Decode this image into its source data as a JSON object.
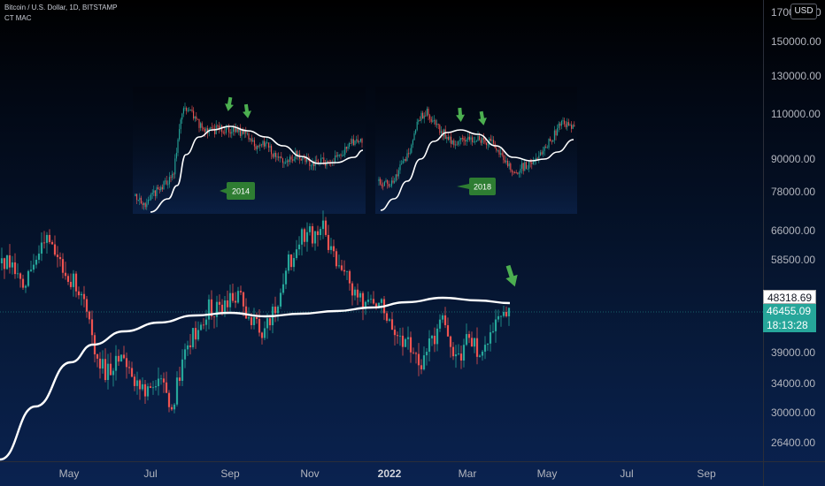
{
  "header": {
    "title": "Bitcoin / U.S. Dollar, 1D, BITSTAMP",
    "indicator": "CT MAC"
  },
  "price_axis": {
    "currency": "USD",
    "ticks": [
      "170000.00",
      "150000.00",
      "130000.00",
      "110000.00",
      "90000.00",
      "78000.00",
      "66000.00",
      "58500.00",
      "39000.00",
      "34000.00",
      "30000.00",
      "26400.00"
    ]
  },
  "time_axis": {
    "ticks": [
      "May",
      "Jul",
      "Sep",
      "Nov",
      "2022",
      "Mar",
      "May",
      "Jul",
      "Sep"
    ]
  },
  "price_tags": {
    "moving_average": "48318.69",
    "last_price": "46455.09",
    "countdown": "18:13:28"
  },
  "annotations": {
    "label_2014": "2014",
    "label_2018": "2018"
  },
  "colors": {
    "up": "#26a69a",
    "down": "#ef5350",
    "moving_average": "#ffffff",
    "arrow": "#4caf50",
    "callout": "#2e7d32"
  },
  "chart_data": {
    "type": "candlestick",
    "symbol": "Bitcoin / U.S. Dollar",
    "interval": "1D",
    "exchange": "BITSTAMP",
    "y_scale": "log",
    "ylim": [
      24000,
      172000
    ],
    "x_period": [
      "2021-04",
      "2022-09"
    ],
    "x": [
      "2021-04-01",
      "2021-05-01",
      "2021-06-01",
      "2021-07-01",
      "2021-08-01",
      "2021-09-01",
      "2021-10-01",
      "2021-11-01",
      "2021-12-01",
      "2022-01-01",
      "2022-02-01",
      "2022-03-01",
      "2022-04-01"
    ],
    "series": [
      {
        "values_close_approx": [
          58500,
          57000,
          36000,
          33000,
          41000,
          47000,
          58000,
          64000,
          48000,
          37000,
          39000,
          43000,
          46455
        ]
      },
      {
        "name": "CT MAC",
        "values_approx": [
          23500,
          31000,
          37500,
          43000,
          46500,
          47300,
          46700,
          47300,
          47700,
          48000,
          48200,
          48300,
          48318.69
        ]
      }
    ],
    "last_price": 46455.09,
    "ma_value": 48318.69,
    "inset_charts": [
      {
        "label": "2014",
        "arrows": 2
      },
      {
        "label": "2018",
        "arrows": 2
      }
    ],
    "current_arrow": 1,
    "grid": false,
    "legend": "none"
  }
}
